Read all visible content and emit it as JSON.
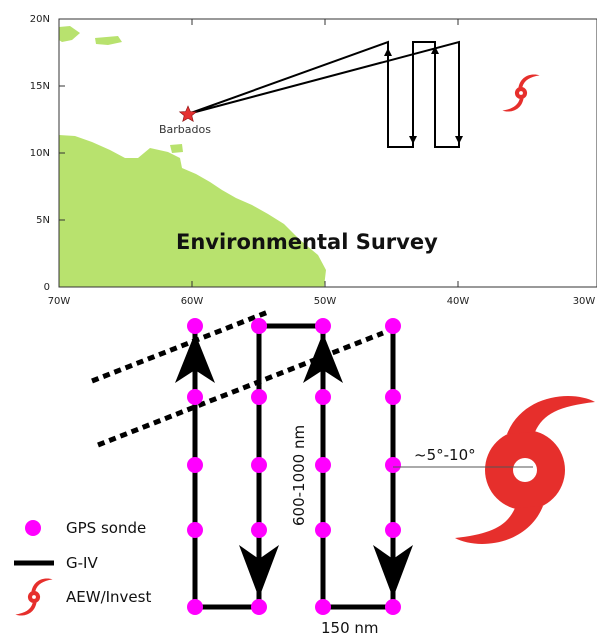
{
  "map": {
    "title": "Environmental Survey",
    "place_label": "Barbados",
    "lat_ticks": [
      "20N",
      "15N",
      "10N",
      "5N",
      "0"
    ],
    "lon_ticks": [
      "70W",
      "60W",
      "50W",
      "40W",
      "30W"
    ],
    "colors": {
      "land": "#b8e26e",
      "track": "#000000",
      "marker": "#e53131",
      "storm": "#e62f2c"
    }
  },
  "schematic": {
    "distance_vertical": "600-1000 nm",
    "distance_horizontal": "150 nm",
    "offset_label": "~5°-10°",
    "colors": {
      "sonde": "#ff00ff",
      "track": "#000000",
      "storm": "#e62f2c"
    }
  },
  "legend": {
    "items": [
      {
        "label": "GPS sonde",
        "icon": "sonde-dot-icon"
      },
      {
        "label": "G-IV",
        "icon": "track-line-icon"
      },
      {
        "label": "AEW/Invest",
        "icon": "hurricane-icon"
      }
    ]
  }
}
